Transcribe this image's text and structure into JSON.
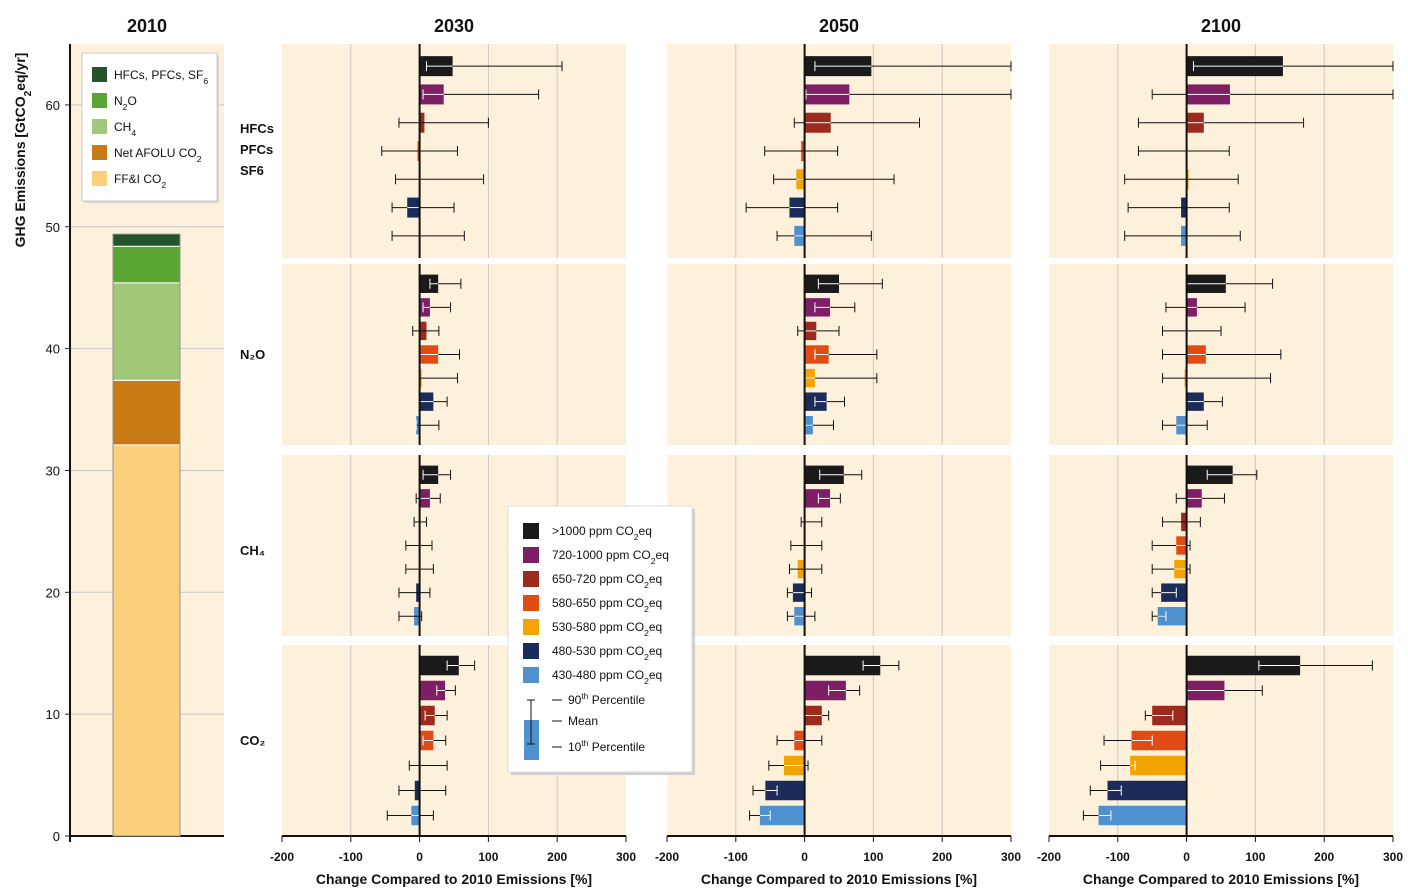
{
  "colors": {
    "background": "#fdf1dc",
    "grid": "#c8c8c8",
    "bar_edge": "#ffffff"
  },
  "chart_data": [
    {
      "type": "bar",
      "subtype": "stacked",
      "title": "2010",
      "ylabel": "GHG Emissions [GtCO2eq/yr]",
      "ylim": [
        0,
        65
      ],
      "yticks": [
        "0",
        "10",
        "20",
        "30",
        "40",
        "50",
        "60"
      ],
      "grid": true,
      "legend_position": "top",
      "segments": [
        {
          "name": "FF&I CO2",
          "value": 32.1,
          "color": "#fccf7d"
        },
        {
          "name": "Net AFOLU CO2",
          "value": 5.3,
          "color": "#c87a14"
        },
        {
          "name": "CH4",
          "value": 8.0,
          "color": "#a0c878"
        },
        {
          "name": "N2O",
          "value": 3.0,
          "color": "#5aa632"
        },
        {
          "name": "HFCs, PFCs, SF6",
          "value": 1.0,
          "color": "#24542a"
        }
      ]
    },
    {
      "type": "bar",
      "subtype": "horizontal-errorbar-grid",
      "xlabel": "Change Compared to 2010 Emissions [%]",
      "xlim": [
        -200,
        300
      ],
      "xticks": [
        "-200",
        "-100",
        "0",
        "100",
        "200",
        "300"
      ],
      "grid": true,
      "years": [
        "2030",
        "2050",
        "2100"
      ],
      "gases": [
        {
          "label": "HFCs PFCs SF6",
          "lines": [
            "HFCs",
            "PFCs",
            "SF6"
          ]
        },
        {
          "label": "N2O",
          "lines": [
            "N₂O"
          ]
        },
        {
          "label": "CH4",
          "lines": [
            "CH₄"
          ]
        },
        {
          "label": "CO2",
          "lines": [
            "CO₂"
          ]
        }
      ],
      "series": [
        {
          "name": ">1000 ppm CO2eq",
          "color": "#1a1a1a"
        },
        {
          "name": "720-1000 ppm CO2eq",
          "color": "#7e1f66"
        },
        {
          "name": "650-720 ppm CO2eq",
          "color": "#9c2b1e"
        },
        {
          "name": "580-650 ppm CO2eq",
          "color": "#e04c14"
        },
        {
          "name": "530-580 ppm CO2eq",
          "color": "#f2a500"
        },
        {
          "name": "480-530 ppm CO2eq",
          "color": "#1c2c5a"
        },
        {
          "name": "430-480 ppm CO2eq",
          "color": "#4f91cf"
        }
      ],
      "values": {
        "2030": {
          "HFCs PFCs SF6": [
            [
              48,
              10,
              207
            ],
            [
              35,
              5,
              173
            ],
            [
              7,
              -30,
              100
            ],
            [
              -3,
              -55,
              55
            ],
            [
              1,
              -35,
              93
            ],
            [
              -18,
              -40,
              50
            ],
            [
              0,
              -40,
              65
            ]
          ],
          "N2O": [
            [
              27,
              15,
              60
            ],
            [
              15,
              5,
              45
            ],
            [
              10,
              -10,
              28
            ],
            [
              27,
              0,
              58
            ],
            [
              3,
              0,
              55
            ],
            [
              20,
              0,
              40
            ],
            [
              -5,
              -5,
              28
            ]
          ],
          "CH4": [
            [
              27,
              5,
              45
            ],
            [
              15,
              -5,
              30
            ],
            [
              0,
              -8,
              10
            ],
            [
              0,
              -20,
              18
            ],
            [
              -1,
              -20,
              20
            ],
            [
              -5,
              -30,
              15
            ],
            [
              -8,
              -30,
              3
            ]
          ],
          "CO2": [
            [
              57,
              40,
              80
            ],
            [
              37,
              25,
              52
            ],
            [
              22,
              8,
              40
            ],
            [
              20,
              5,
              38
            ],
            [
              0,
              -15,
              40
            ],
            [
              -7,
              -30,
              38
            ],
            [
              -12,
              -47,
              20
            ]
          ]
        },
        "2050": {
          "HFCs PFCs SF6": [
            [
              97,
              15,
              300
            ],
            [
              65,
              2,
              300
            ],
            [
              38,
              -15,
              167
            ],
            [
              -5,
              -58,
              48
            ],
            [
              -12,
              -45,
              130
            ],
            [
              -22,
              -85,
              48
            ],
            [
              -15,
              -40,
              97
            ]
          ],
          "N2O": [
            [
              50,
              20,
              113
            ],
            [
              37,
              15,
              73
            ],
            [
              17,
              -10,
              50
            ],
            [
              35,
              15,
              105
            ],
            [
              15,
              0,
              105
            ],
            [
              32,
              15,
              58
            ],
            [
              12,
              0,
              42
            ]
          ],
          "CH4": [
            [
              57,
              22,
              83
            ],
            [
              37,
              20,
              52
            ],
            [
              0,
              -5,
              25
            ],
            [
              0,
              -20,
              25
            ],
            [
              -10,
              -22,
              25
            ],
            [
              -17,
              -25,
              10
            ],
            [
              -15,
              -25,
              15
            ]
          ],
          "CO2": [
            [
              110,
              85,
              137
            ],
            [
              60,
              35,
              80
            ],
            [
              25,
              0,
              35
            ],
            [
              -15,
              -40,
              25
            ],
            [
              -30,
              -52,
              5
            ],
            [
              -57,
              -75,
              -40
            ],
            [
              -65,
              -80,
              -50
            ]
          ]
        },
        "2100": {
          "HFCs PFCs SF6": [
            [
              140,
              10,
              300
            ],
            [
              63,
              -50,
              300
            ],
            [
              25,
              -70,
              170
            ],
            [
              0,
              -70,
              62
            ],
            [
              3,
              -90,
              75
            ],
            [
              -8,
              -85,
              62
            ],
            [
              -8,
              -90,
              78
            ]
          ],
          "N2O": [
            [
              57,
              0,
              125
            ],
            [
              15,
              -30,
              85
            ],
            [
              0,
              -35,
              50
            ],
            [
              28,
              -35,
              137
            ],
            [
              -3,
              -35,
              122
            ],
            [
              25,
              0,
              52
            ],
            [
              -15,
              -35,
              30
            ]
          ],
          "CH4": [
            [
              67,
              30,
              102
            ],
            [
              22,
              -15,
              55
            ],
            [
              -8,
              -35,
              20
            ],
            [
              -15,
              -50,
              5
            ],
            [
              -18,
              -50,
              5
            ],
            [
              -37,
              -50,
              -15
            ],
            [
              -42,
              -50,
              -30
            ]
          ],
          "CO2": [
            [
              165,
              105,
              270
            ],
            [
              55,
              0,
              110
            ],
            [
              -50,
              -60,
              -20
            ],
            [
              -80,
              -120,
              -50
            ],
            [
              -82,
              -125,
              -75
            ],
            [
              -115,
              -140,
              -95
            ],
            [
              -128,
              -150,
              -110
            ]
          ]
        }
      },
      "legend_position": "center",
      "legend_percentile_labels": [
        "90th Percentile",
        "Mean",
        "10th Percentile"
      ]
    }
  ]
}
